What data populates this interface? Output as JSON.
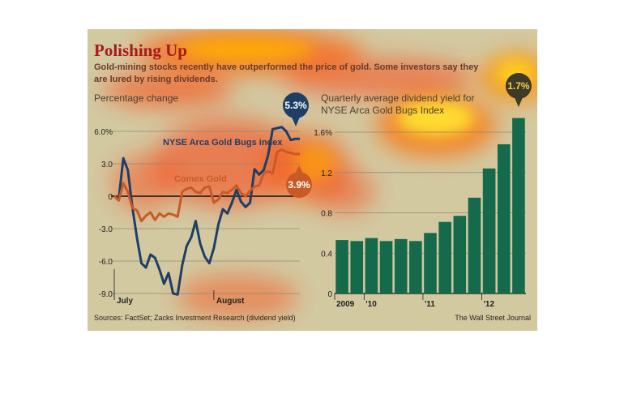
{
  "header": {
    "title": "Polishing Up",
    "subtitle_line1": "Gold-mining stocks recently have outperformed the price of gold. Some investors say they",
    "subtitle_line2": "are lured by rising dividends."
  },
  "footer": {
    "source": "Sources: FactSet; Zacks Investment Research (dividend yield)",
    "credit": "The Wall Street Journal"
  },
  "colors": {
    "index": "#1d3f66",
    "gold": "#c85a26",
    "bar": "#166a4c",
    "bg": "#d3c9a1"
  },
  "chart_data": [
    {
      "type": "line",
      "ylabel": "Percentage change",
      "ylim": [
        -9.0,
        6.0
      ],
      "yticks": [
        6.0,
        3.0,
        0,
        -3.0,
        -6.0,
        -9.0
      ],
      "ytick_labels": [
        "6.0%",
        "3.0",
        "0",
        "-3.0",
        "-6.0",
        "-9.0"
      ],
      "x_labels": [
        "July",
        "August"
      ],
      "x_label_positions": [
        0,
        22
      ],
      "x_count": 42,
      "series": [
        {
          "name": "NYSE Arca Gold Bugs index",
          "end_label": "5.3%",
          "values": [
            0,
            -0.2,
            3.5,
            2.4,
            -1.0,
            -3.8,
            -6.2,
            -6.6,
            -5.4,
            -5.7,
            -6.8,
            -8.1,
            -7.1,
            -9.0,
            -9.1,
            -6.4,
            -4.6,
            -3.8,
            -2.3,
            -4.4,
            -5.6,
            -6.2,
            -4.8,
            -2.6,
            -1.2,
            -1.6,
            -0.6,
            0.6,
            -0.5,
            -1.0,
            -0.6,
            2.5,
            2.0,
            2.4,
            3.8,
            6.2,
            6.3,
            6.4,
            6.0,
            5.2,
            5.3,
            5.3
          ]
        },
        {
          "name": "Comex Gold",
          "end_label": "3.9%",
          "values": [
            0,
            -0.4,
            1.2,
            0.4,
            -1.1,
            -1.3,
            -2.3,
            -1.8,
            -1.5,
            -2.2,
            -1.6,
            -1.9,
            -1.6,
            -1.7,
            -1.9,
            0.4,
            0.7,
            0.8,
            0.4,
            0.3,
            0.8,
            0.9,
            -0.6,
            -0.3,
            0.4,
            0.3,
            0.6,
            1.0,
            0.3,
            0.0,
            0.5,
            0.9,
            1.0,
            2.1,
            2.3,
            2.1,
            4.1,
            4.3,
            4.1,
            4.0,
            3.9,
            3.9
          ]
        }
      ]
    },
    {
      "type": "bar",
      "title": "Quarterly average dividend yield for NYSE Arca Gold Bugs Index",
      "end_label": "1.7%",
      "ylim": [
        0,
        1.6
      ],
      "yticks": [
        0,
        0.4,
        0.8,
        1.2,
        1.6
      ],
      "ytick_labels": [
        "0",
        "0.4",
        "0.8",
        "1.2",
        "1.6%"
      ],
      "x_labels": [
        "2009",
        "'10",
        "'11",
        "'12"
      ],
      "x_label_bar_index": [
        0,
        2,
        6,
        10
      ],
      "values": [
        0.53,
        0.52,
        0.55,
        0.52,
        0.54,
        0.52,
        0.6,
        0.71,
        0.77,
        0.95,
        1.24,
        1.48,
        1.74
      ]
    }
  ]
}
